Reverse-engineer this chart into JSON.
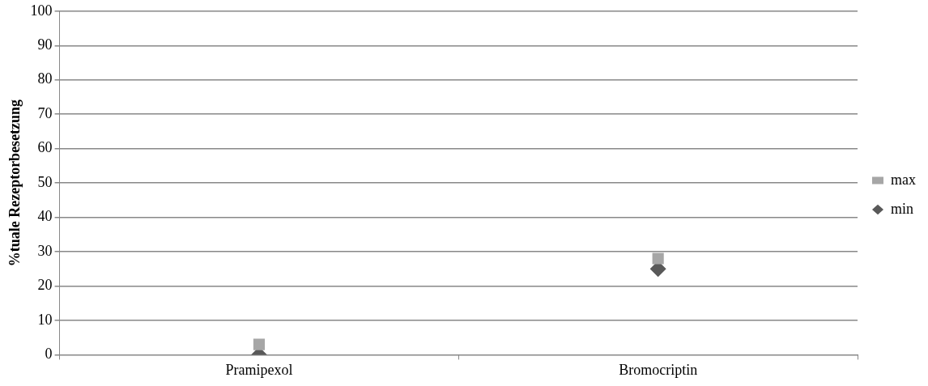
{
  "chart_data": {
    "type": "scatter",
    "ylabel": "%tuale Rezeptorbesetzung",
    "categories": [
      "Pramipexol",
      "Bromocriptin"
    ],
    "series": [
      {
        "name": "min",
        "color": "#595959",
        "marker": "diamond",
        "values": [
          0,
          25
        ]
      },
      {
        "name": "max",
        "color": "#a6a6a6",
        "marker": "square",
        "values": [
          3,
          28
        ]
      }
    ],
    "ylim": [
      0,
      100
    ],
    "yticks": [
      0,
      10,
      20,
      30,
      40,
      50,
      60,
      70,
      80,
      90,
      100
    ],
    "grid": "y",
    "legend": "right"
  }
}
